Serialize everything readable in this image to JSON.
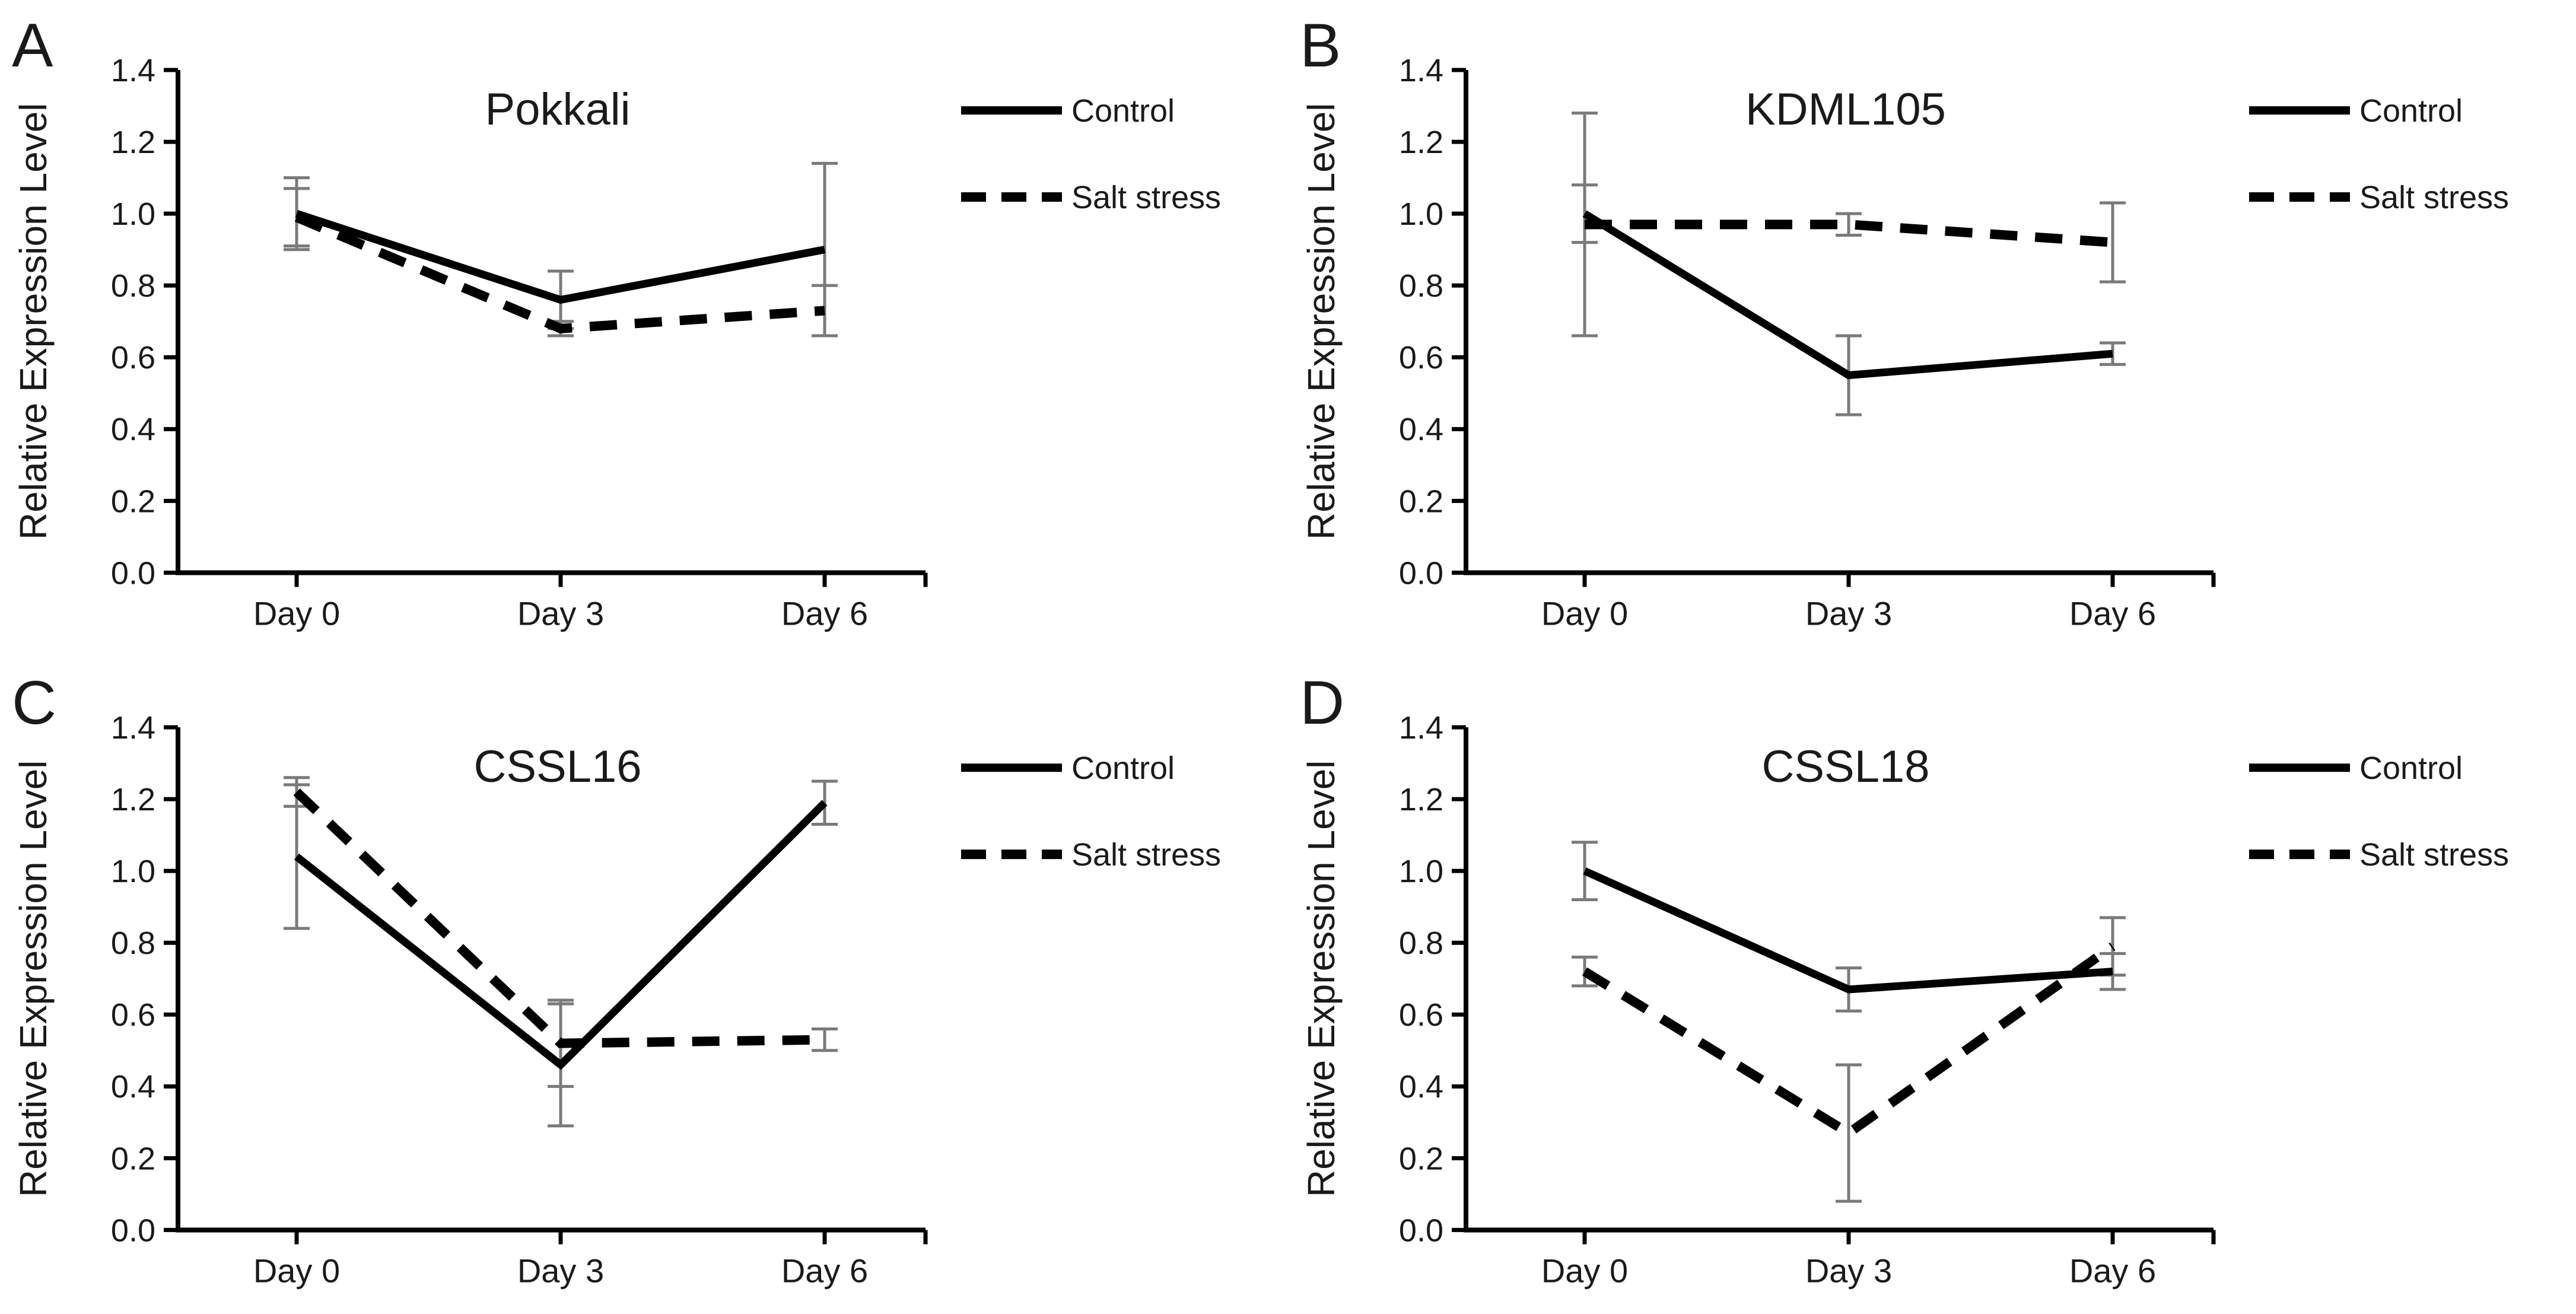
{
  "figure_title": "",
  "y_tick_labels": [
    "0.0",
    "0.2",
    "0.4",
    "0.6",
    "0.8",
    "1.0",
    "1.2",
    "1.4"
  ],
  "colors": {
    "line": "#000000",
    "error_bar": "#7a7a7a",
    "text": "#1a1a1a",
    "background": "#ffffff"
  },
  "chart_data": [
    {
      "panel": "A",
      "type": "line",
      "title": "Pokkali",
      "ylabel": "Relative Expression Level",
      "xlabel": "",
      "categories": [
        "Day 0",
        "Day 3",
        "Day 6"
      ],
      "ylim": [
        0.0,
        1.4
      ],
      "yticks": [
        0.0,
        0.2,
        0.4,
        0.6,
        0.8,
        1.0,
        1.2,
        1.4
      ],
      "grid": false,
      "legend_position": "top-right",
      "series": [
        {
          "name": "Control",
          "style": "solid",
          "values": [
            1.0,
            0.76,
            0.9
          ],
          "errors": [
            0.1,
            0.08,
            0.24
          ]
        },
        {
          "name": "Salt stress",
          "style": "dashed",
          "values": [
            0.99,
            0.68,
            0.73
          ],
          "errors": [
            0.08,
            0.02,
            0.07
          ]
        }
      ]
    },
    {
      "panel": "B",
      "type": "line",
      "title": "KDML105",
      "ylabel": "Relative Expression Level",
      "xlabel": "",
      "categories": [
        "Day 0",
        "Day 3",
        "Day 6"
      ],
      "ylim": [
        0.0,
        1.4
      ],
      "yticks": [
        0.0,
        0.2,
        0.4,
        0.6,
        0.8,
        1.0,
        1.2,
        1.4
      ],
      "grid": false,
      "legend_position": "top-right",
      "series": [
        {
          "name": "Control",
          "style": "solid",
          "values": [
            1.0,
            0.55,
            0.61
          ],
          "errors": [
            0.08,
            0.11,
            0.03
          ]
        },
        {
          "name": "Salt stress",
          "style": "dashed",
          "values": [
            0.97,
            0.97,
            0.92
          ],
          "errors": [
            0.31,
            0.03,
            0.11
          ]
        }
      ]
    },
    {
      "panel": "C",
      "type": "line",
      "title": "CSSL16",
      "ylabel": "Relative Expression Level",
      "xlabel": "",
      "categories": [
        "Day 0",
        "Day 3",
        "Day 6"
      ],
      "ylim": [
        0.0,
        1.4
      ],
      "yticks": [
        0.0,
        0.2,
        0.4,
        0.6,
        0.8,
        1.0,
        1.2,
        1.4
      ],
      "grid": false,
      "legend_position": "top-right",
      "series": [
        {
          "name": "Control",
          "style": "solid",
          "values": [
            1.04,
            0.46,
            1.19
          ],
          "errors": [
            0.2,
            0.17,
            0.06
          ]
        },
        {
          "name": "Salt stress",
          "style": "dashed",
          "values": [
            1.22,
            0.52,
            0.53
          ],
          "errors": [
            0.04,
            0.12,
            0.03
          ]
        }
      ]
    },
    {
      "panel": "D",
      "type": "line",
      "title": "CSSL18",
      "ylabel": "Relative Expression Level",
      "xlabel": "",
      "categories": [
        "Day 0",
        "Day 3",
        "Day 6"
      ],
      "ylim": [
        0.0,
        1.4
      ],
      "yticks": [
        0.0,
        0.2,
        0.4,
        0.6,
        0.8,
        1.0,
        1.2,
        1.4
      ],
      "grid": false,
      "legend_position": "top-right",
      "series": [
        {
          "name": "Control",
          "style": "solid",
          "values": [
            1.0,
            0.67,
            0.72
          ],
          "errors": [
            0.08,
            0.06,
            0.05
          ]
        },
        {
          "name": "Salt stress",
          "style": "dashed",
          "values": [
            0.72,
            0.27,
            0.79
          ],
          "errors": [
            0.04,
            0.19,
            0.08
          ]
        }
      ]
    }
  ]
}
